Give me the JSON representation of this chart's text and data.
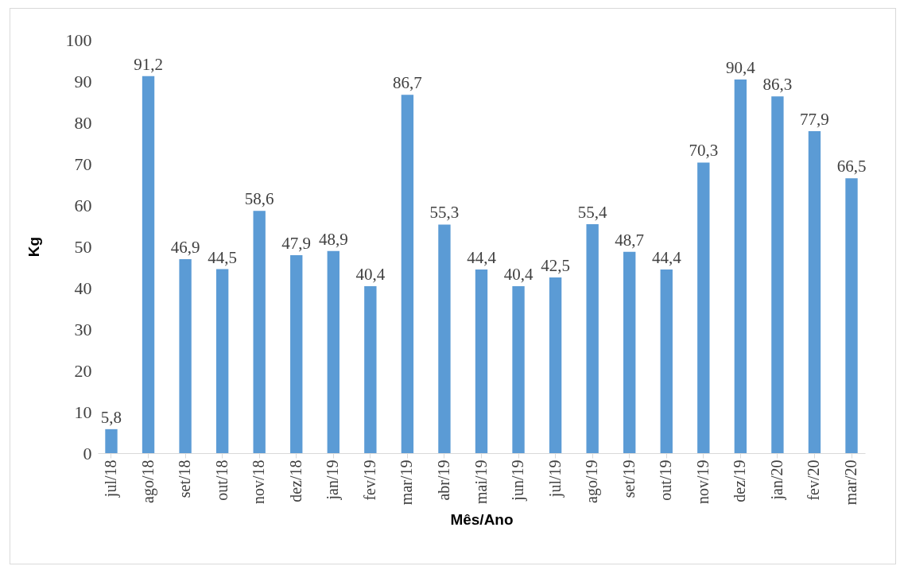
{
  "chart_data": {
    "type": "bar",
    "xlabel": "Mês/Ano",
    "ylabel": "Kg",
    "categories": [
      "jul/18",
      "ago/18",
      "set/18",
      "out/18",
      "nov/18",
      "dez/18",
      "jan/19",
      "fev/19",
      "mar/19",
      "abr/19",
      "mai/19",
      "jun/19",
      "jul/19",
      "ago/19",
      "set/19",
      "out/19",
      "nov/19",
      "dez/19",
      "jan/20",
      "fev/20",
      "mar/20"
    ],
    "values": [
      5.8,
      91.2,
      46.9,
      44.5,
      58.6,
      47.9,
      48.9,
      40.4,
      86.7,
      55.3,
      44.4,
      40.4,
      42.5,
      55.4,
      48.7,
      44.4,
      70.3,
      90.4,
      86.3,
      77.9,
      66.5
    ],
    "value_labels": [
      "5,8",
      "91,2",
      "46,9",
      "44,5",
      "58,6",
      "47,9",
      "48,9",
      "40,4",
      "86,7",
      "55,3",
      "44,4",
      "40,4",
      "42,5",
      "55,4",
      "48,7",
      "44,4",
      "70,3",
      "90,4",
      "86,3",
      "77,9",
      "66,5"
    ],
    "color": "#5b9bd5",
    "ylim": [
      0,
      100
    ],
    "yticks": [
      0,
      10,
      20,
      30,
      40,
      50,
      60,
      70,
      80,
      90,
      100
    ],
    "grid": false
  }
}
